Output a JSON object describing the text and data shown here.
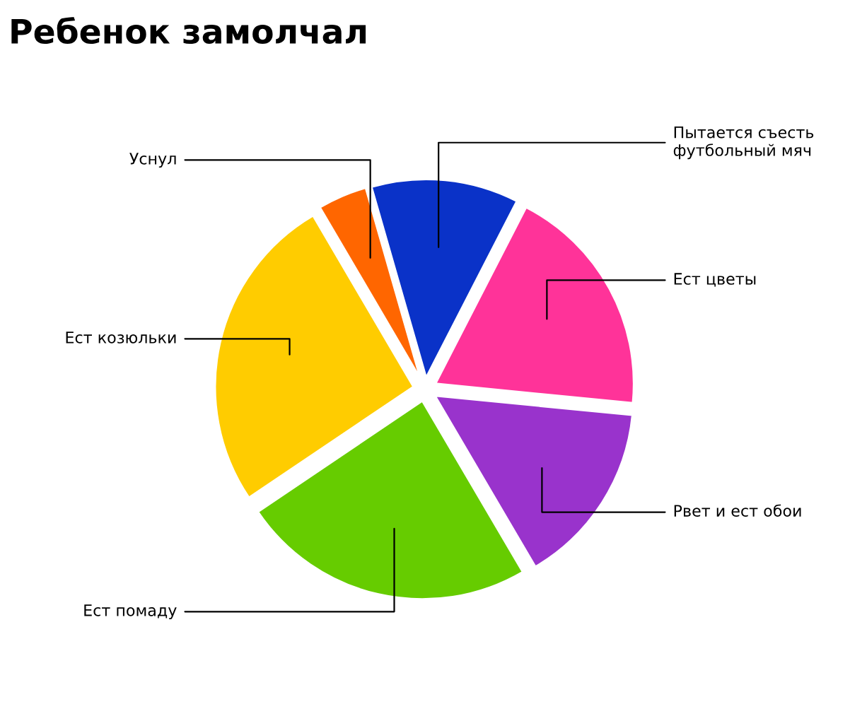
{
  "chart_data": {
    "type": "pie",
    "title": "Ребенок замолчал",
    "categories": [
      "Пытается съесть\nфутбольный мяч",
      "Ест цветы",
      "Рвет и ест обои",
      "Ест помаду",
      "Ест козюльки",
      "Уснул"
    ],
    "values": [
      12,
      19,
      15,
      24,
      26,
      4
    ],
    "colors": [
      "#0a32c8",
      "#ff3399",
      "#9933cc",
      "#66cc00",
      "#ffcc00",
      "#ff6600"
    ],
    "legend": false
  }
}
